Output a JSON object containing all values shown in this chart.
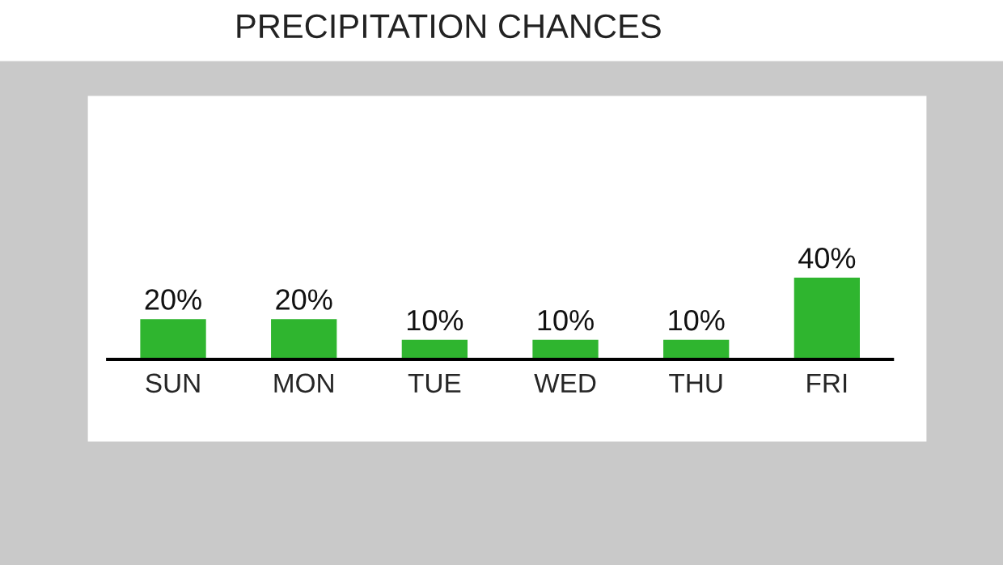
{
  "chart_data": {
    "type": "bar",
    "title": "PRECIPITATION CHANCES",
    "categories": [
      "SUN",
      "MON",
      "TUE",
      "WED",
      "THU",
      "FRI"
    ],
    "values": [
      20,
      20,
      10,
      10,
      10,
      40
    ],
    "value_labels": [
      "20%",
      "20%",
      "10%",
      "10%",
      "10%",
      "40%"
    ],
    "color": "#2fb52f",
    "grid": false,
    "legend": false
  }
}
